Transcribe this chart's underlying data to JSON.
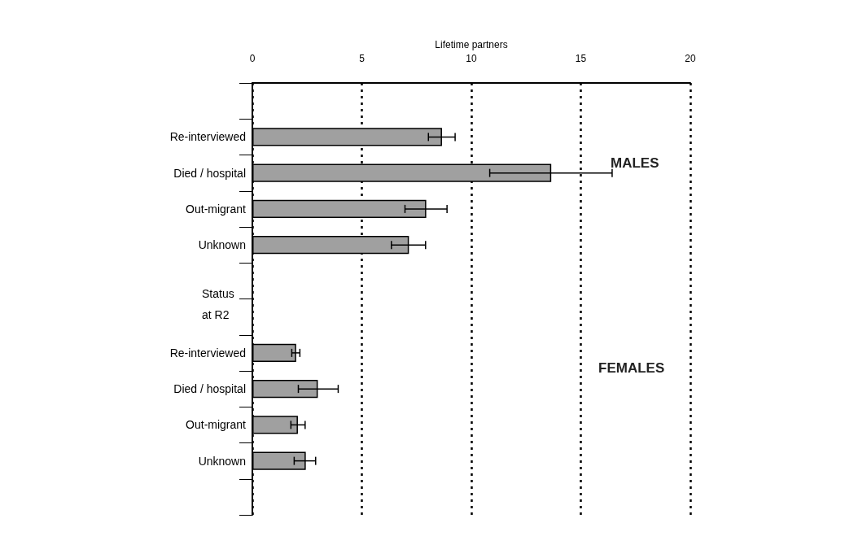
{
  "chart_data": {
    "type": "bar",
    "orientation": "horizontal",
    "xlabel": "Lifetime partners",
    "ylabel": "Status at R2",
    "categories": [
      null,
      "Re-interviewed",
      "Died / hospital",
      "Out-migrant",
      "Unknown",
      null,
      null,
      "Re-interviewed",
      "Died / hospital",
      "Out-migrant",
      "Unknown",
      null
    ],
    "values": [
      null,
      8.66,
      13.65,
      7.94,
      7.15,
      null,
      null,
      2.0,
      2.99,
      2.08,
      2.44,
      null
    ],
    "errors": [
      null,
      [
        8.04,
        9.26
      ],
      [
        10.84,
        16.43
      ],
      [
        6.97,
        8.89
      ],
      [
        6.35,
        7.91
      ],
      null,
      null,
      [
        1.8,
        2.17
      ],
      [
        2.1,
        3.92
      ],
      [
        1.76,
        2.41
      ],
      [
        1.91,
        2.89
      ],
      null
    ],
    "color": "#a0a0a0",
    "xlim": [
      0,
      20
    ],
    "xticks": [
      0,
      5,
      10,
      15,
      20
    ],
    "grid": "x",
    "annotations": [
      "MALES",
      "FEMALES"
    ]
  }
}
